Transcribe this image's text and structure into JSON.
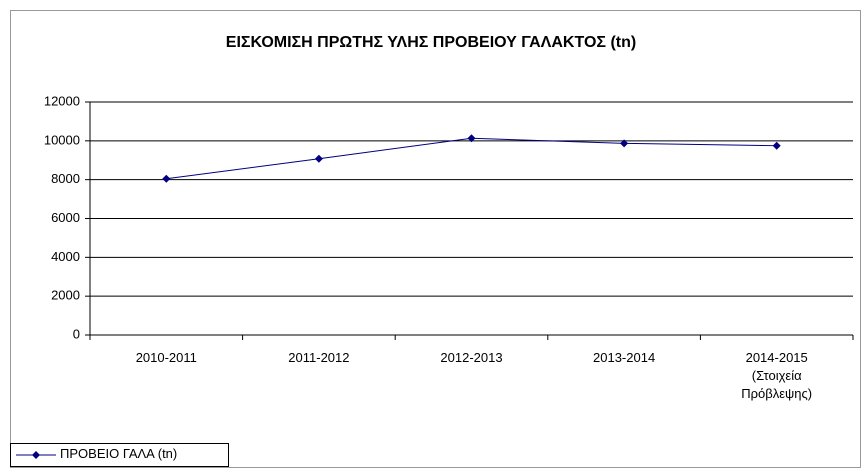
{
  "chart_data": {
    "type": "line",
    "title": "ΕΙΣΚΟΜΙΣΗ ΠΡΩΤΗΣ ΥΛΗΣ ΠΡΟΒΕΙΟΥ ΓΑΛΑΚΤΟΣ (tn)",
    "categories": [
      "2010-2011",
      "2011-2012",
      "2012-2013",
      "2013-2014",
      "2014-2015\n(Στοιχεία\nΠρόβλεψης)"
    ],
    "series": [
      {
        "name": "ΠΡΟΒΕΙΟ ΓΑΛΑ (tn)",
        "color": "#000080",
        "values": [
          8050,
          9080,
          10130,
          9870,
          9750
        ]
      }
    ],
    "ylim": [
      0,
      12000
    ],
    "yticks": [
      0,
      2000,
      4000,
      6000,
      8000,
      10000,
      12000
    ],
    "grid": true,
    "legend": "bottom-left"
  }
}
